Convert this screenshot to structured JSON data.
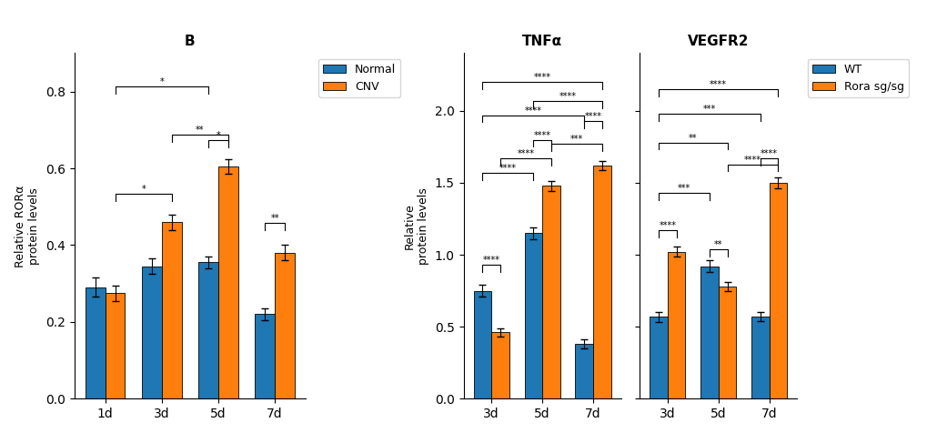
{
  "chart_data": [
    {
      "type": "bar",
      "title": "B",
      "ylabel": "Relative RORα\nprotein levels",
      "categories": [
        "1d",
        "3d",
        "5d",
        "7d"
      ],
      "series": [
        {
          "name": "Normal",
          "values": [
            0.29,
            0.345,
            0.355,
            0.22
          ],
          "errors": [
            0.025,
            0.02,
            0.015,
            0.015
          ]
        },
        {
          "name": "CNV",
          "values": [
            0.275,
            0.46,
            0.605,
            0.38
          ],
          "errors": [
            0.02,
            0.02,
            0.018,
            0.02
          ]
        }
      ],
      "ylim": [
        0,
        0.9
      ],
      "yticks": [
        0.0,
        0.2,
        0.4,
        0.6,
        0.8
      ],
      "legend": "upper left",
      "annotations": [
        {
          "text": "*",
          "y": 0.515,
          "start": {
            "category": "1d",
            "series": "CNV"
          },
          "end": {
            "category": "3d",
            "series": "CNV"
          }
        },
        {
          "text": "**",
          "y": 0.67,
          "start": {
            "category": "3d",
            "series": "CNV"
          },
          "end": {
            "category": "5d",
            "series": "CNV"
          }
        },
        {
          "text": "*",
          "y": 0.655,
          "start": {
            "category": "5d",
            "series": "Normal"
          },
          "end": {
            "category": "5d",
            "series": "CNV"
          }
        },
        {
          "text": "**",
          "y": 0.44,
          "start": {
            "category": "7d",
            "series": "Normal"
          },
          "end": {
            "category": "7d",
            "series": "CNV"
          }
        },
        {
          "text": "*",
          "y": 0.795,
          "start": {
            "category": "1d",
            "series": "CNV"
          },
          "end": {
            "category": "5d",
            "series": "Normal"
          }
        }
      ]
    },
    {
      "type": "bar",
      "title": "TNFα",
      "ylabel": "Relative\nprotein levels",
      "categories": [
        "3d",
        "5d",
        "7d"
      ],
      "series": [
        {
          "name": "WT",
          "values": [
            0.75,
            1.15,
            0.38
          ],
          "errors": [
            0.04,
            0.04,
            0.03
          ]
        },
        {
          "name": "Rora sg/sg",
          "values": [
            0.46,
            1.48,
            1.62
          ],
          "errors": [
            0.03,
            0.035,
            0.03
          ]
        }
      ],
      "ylim": [
        0,
        2.4
      ],
      "yticks": [
        0.0,
        0.5,
        1.0,
        1.5,
        2.0
      ],
      "annotations": [
        {
          "text": "****",
          "y": 0.88,
          "start": {
            "category": "3d",
            "series": "WT"
          },
          "end": {
            "category": "3d",
            "series": "Rora sg/sg"
          }
        },
        {
          "text": "****",
          "y": 1.75,
          "start": {
            "category": "5d",
            "series": "WT"
          },
          "end": {
            "category": "5d",
            "series": "Rora sg/sg"
          }
        },
        {
          "text": "****",
          "y": 1.88,
          "start": {
            "category": "7d",
            "series": "WT"
          },
          "end": {
            "category": "7d",
            "series": "Rora sg/sg"
          }
        },
        {
          "text": "****",
          "y": 1.52,
          "start": {
            "category": "3d",
            "series": "WT"
          },
          "end": {
            "category": "5d",
            "series": "WT"
          }
        },
        {
          "text": "****",
          "y": 1.62,
          "start": {
            "category": "3d",
            "series": "Rora sg/sg"
          },
          "end": {
            "category": "5d",
            "series": "Rora sg/sg"
          }
        },
        {
          "text": "***",
          "y": 1.72,
          "start": {
            "category": "5d",
            "series": "Rora sg/sg"
          },
          "end": {
            "category": "7d",
            "series": "Rora sg/sg"
          }
        },
        {
          "text": "****",
          "y": 1.92,
          "start": {
            "category": "3d",
            "series": "WT"
          },
          "end": {
            "category": "7d",
            "series": "WT"
          }
        },
        {
          "text": "****",
          "y": 2.02,
          "start": {
            "category": "5d",
            "series": "WT"
          },
          "end": {
            "category": "7d",
            "series": "Rora sg/sg"
          }
        },
        {
          "text": "****",
          "y": 2.15,
          "start": {
            "category": "3d",
            "series": "WT"
          },
          "end": {
            "category": "7d",
            "series": "Rora sg/sg"
          }
        }
      ]
    },
    {
      "type": "bar",
      "title": "VEGFR2",
      "categories": [
        "3d",
        "5d",
        "7d"
      ],
      "series": [
        {
          "name": "WT",
          "values": [
            0.57,
            0.92,
            0.57
          ],
          "errors": [
            0.035,
            0.04,
            0.03
          ]
        },
        {
          "name": "Rora sg/sg",
          "values": [
            1.02,
            0.78,
            1.5
          ],
          "errors": [
            0.035,
            0.03,
            0.04
          ]
        }
      ],
      "ylim": [
        0,
        2.4
      ],
      "yticks": [
        0.0,
        0.5,
        1.0,
        1.5,
        2.0
      ],
      "tick_labels": "x",
      "legend": "upper left",
      "annotations": [
        {
          "text": "****",
          "y": 1.12,
          "start": {
            "category": "3d",
            "series": "WT"
          },
          "end": {
            "category": "3d",
            "series": "Rora sg/sg"
          }
        },
        {
          "text": "**",
          "y": 0.99,
          "start": {
            "category": "5d",
            "series": "WT"
          },
          "end": {
            "category": "5d",
            "series": "Rora sg/sg"
          }
        },
        {
          "text": "****",
          "y": 1.62,
          "start": {
            "category": "7d",
            "series": "WT"
          },
          "end": {
            "category": "7d",
            "series": "Rora sg/sg"
          }
        },
        {
          "text": "***",
          "y": 1.38,
          "start": {
            "category": "3d",
            "series": "WT"
          },
          "end": {
            "category": "5d",
            "series": "WT"
          }
        },
        {
          "text": "****",
          "y": 1.58,
          "start": {
            "category": "5d",
            "series": "Rora sg/sg"
          },
          "end": {
            "category": "7d",
            "series": "Rora sg/sg"
          }
        },
        {
          "text": "**",
          "y": 1.73,
          "start": {
            "category": "3d",
            "series": "WT"
          },
          "end": {
            "category": "5d",
            "series": "Rora sg/sg"
          }
        },
        {
          "text": "***",
          "y": 1.93,
          "start": {
            "category": "3d",
            "series": "WT"
          },
          "end": {
            "category": "7d",
            "series": "WT"
          }
        },
        {
          "text": "****",
          "y": 2.1,
          "start": {
            "category": "3d",
            "series": "WT"
          },
          "end": {
            "category": "7d",
            "series": "Rora sg/sg"
          }
        }
      ]
    }
  ]
}
